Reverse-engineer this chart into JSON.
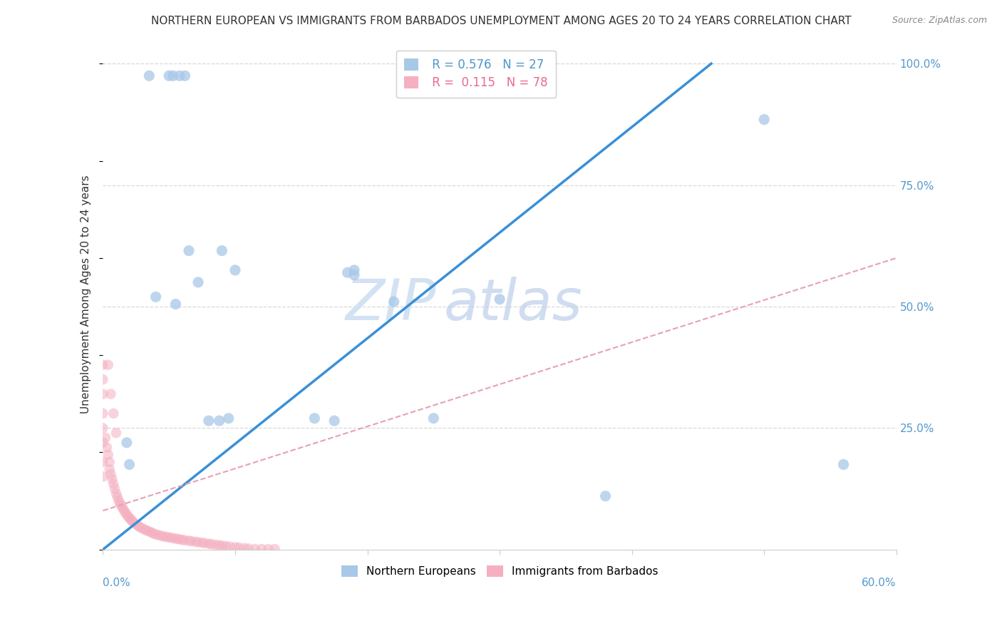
{
  "title": "NORTHERN EUROPEAN VS IMMIGRANTS FROM BARBADOS UNEMPLOYMENT AMONG AGES 20 TO 24 YEARS CORRELATION CHART",
  "source": "Source: ZipAtlas.com",
  "ylabel": "Unemployment Among Ages 20 to 24 years",
  "blue_R": 0.576,
  "blue_N": 27,
  "pink_R": 0.115,
  "pink_N": 78,
  "blue_color": "#a8c8e8",
  "pink_color": "#f4afc0",
  "blue_line_color": "#3a8fd8",
  "pink_line_color": "#e8a0b8",
  "watermark_zip": "ZIP",
  "watermark_atlas": "atlas",
  "blue_points_x": [
    0.018,
    0.035,
    0.05,
    0.053,
    0.058,
    0.062,
    0.04,
    0.065,
    0.072,
    0.09,
    0.1,
    0.08,
    0.088,
    0.175,
    0.185,
    0.19,
    0.19,
    0.22,
    0.3,
    0.38,
    0.5,
    0.02,
    0.055,
    0.095,
    0.16,
    0.25,
    0.56
  ],
  "blue_points_y": [
    0.22,
    0.975,
    0.975,
    0.975,
    0.975,
    0.975,
    0.52,
    0.615,
    0.55,
    0.615,
    0.575,
    0.265,
    0.265,
    0.265,
    0.57,
    0.575,
    0.565,
    0.51,
    0.515,
    0.11,
    0.885,
    0.175,
    0.505,
    0.27,
    0.27,
    0.27,
    0.175
  ],
  "pink_points_x": [
    0.0,
    0.0,
    0.0,
    0.0,
    0.0,
    0.0,
    0.0,
    0.0,
    0.002,
    0.003,
    0.004,
    0.005,
    0.005,
    0.006,
    0.007,
    0.008,
    0.009,
    0.01,
    0.011,
    0.012,
    0.013,
    0.014,
    0.015,
    0.016,
    0.017,
    0.018,
    0.019,
    0.02,
    0.021,
    0.022,
    0.023,
    0.025,
    0.027,
    0.028,
    0.03,
    0.032,
    0.033,
    0.035,
    0.037,
    0.038,
    0.04,
    0.042,
    0.044,
    0.046,
    0.048,
    0.05,
    0.052,
    0.054,
    0.056,
    0.058,
    0.06,
    0.062,
    0.065,
    0.067,
    0.07,
    0.072,
    0.075,
    0.077,
    0.08,
    0.082,
    0.085,
    0.088,
    0.09,
    0.093,
    0.096,
    0.1,
    0.103,
    0.107,
    0.11,
    0.115,
    0.12,
    0.125,
    0.13,
    0.004,
    0.006,
    0.008,
    0.01
  ],
  "pink_points_y": [
    0.38,
    0.35,
    0.32,
    0.28,
    0.25,
    0.22,
    0.18,
    0.15,
    0.23,
    0.21,
    0.195,
    0.18,
    0.165,
    0.155,
    0.145,
    0.135,
    0.125,
    0.115,
    0.108,
    0.1,
    0.095,
    0.09,
    0.085,
    0.08,
    0.076,
    0.072,
    0.068,
    0.065,
    0.062,
    0.059,
    0.056,
    0.052,
    0.048,
    0.046,
    0.043,
    0.041,
    0.039,
    0.037,
    0.035,
    0.033,
    0.031,
    0.03,
    0.028,
    0.027,
    0.026,
    0.025,
    0.024,
    0.023,
    0.022,
    0.021,
    0.02,
    0.019,
    0.018,
    0.017,
    0.016,
    0.015,
    0.014,
    0.013,
    0.012,
    0.011,
    0.01,
    0.009,
    0.008,
    0.007,
    0.006,
    0.005,
    0.004,
    0.003,
    0.002,
    0.001,
    0.001,
    0.001,
    0.001,
    0.38,
    0.32,
    0.28,
    0.24
  ],
  "blue_line_x0": 0.0,
  "blue_line_y0": 0.0,
  "blue_line_x1": 0.46,
  "blue_line_y1": 1.0,
  "pink_line_x0": 0.0,
  "pink_line_y0": 0.08,
  "pink_line_x1": 0.6,
  "pink_line_y1": 0.6,
  "xlim": [
    0.0,
    0.6
  ],
  "ylim": [
    0.0,
    1.05
  ],
  "xtick_positions": [
    0.0,
    0.1,
    0.2,
    0.3,
    0.4,
    0.5,
    0.6
  ],
  "ytick_positions": [
    0.0,
    0.25,
    0.5,
    0.75,
    1.0
  ],
  "ytick_labels": [
    "",
    "25.0%",
    "50.0%",
    "75.0%",
    "100.0%"
  ],
  "grid_color": "#d8d8d8",
  "axis_color": "#cccccc",
  "right_label_color": "#5599cc",
  "watermark_color": "#ccddf0",
  "title_fontsize": 11,
  "source_fontsize": 9,
  "ylabel_fontsize": 11,
  "tick_label_fontsize": 11
}
